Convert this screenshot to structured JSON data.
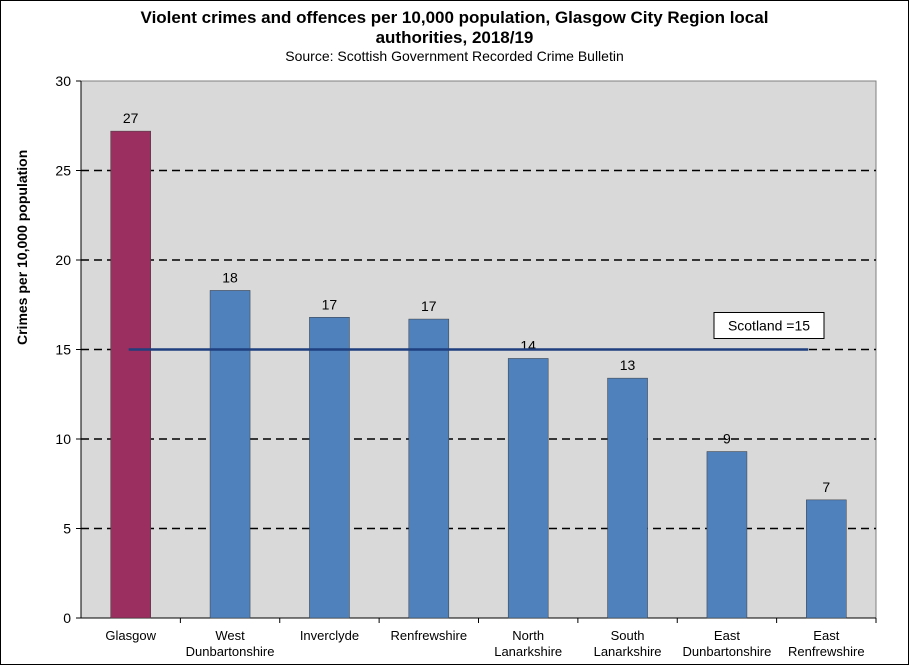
{
  "chart_data": {
    "type": "bar",
    "title": "Violent crimes and offences per 10,000 population, Glasgow City Region local authorities, 2018/19",
    "title_lines": [
      "Violent crimes and offences per 10,000 population, Glasgow City Region local",
      "authorities, 2018/19"
    ],
    "subtitle": "Source:  Scottish Government  Recorded Crime Bulletin",
    "xlabel": "",
    "ylabel": "Crimes per 10,000 population",
    "ylim": [
      0,
      30
    ],
    "yticks": [
      0,
      5,
      10,
      15,
      20,
      25,
      30
    ],
    "grid": "horizontal dashed",
    "categories": [
      [
        "Glasgow"
      ],
      [
        "West",
        "Dunbartonshire"
      ],
      [
        "Inverclyde"
      ],
      [
        "Renfrewshire"
      ],
      [
        "North",
        "Lanarkshire"
      ],
      [
        "South",
        "Lanarkshire"
      ],
      [
        "East",
        "Dunbartonshire"
      ],
      [
        "East",
        "Renfrewshire"
      ]
    ],
    "values": [
      27.2,
      18.3,
      16.8,
      16.7,
      14.5,
      13.4,
      9.3,
      6.6
    ],
    "data_labels": [
      "27",
      "18",
      "17",
      "17",
      "14",
      "13",
      "9",
      "7"
    ],
    "bar_colors": [
      "#9b2f5f",
      "#4f81bd",
      "#4f81bd",
      "#4f81bd",
      "#4f81bd",
      "#4f81bd",
      "#4f81bd",
      "#4f81bd"
    ],
    "reference_line": {
      "value": 15,
      "label": "Scotland =15",
      "color": "#1f3f7f"
    },
    "plot_background": "#d9d9d9"
  }
}
